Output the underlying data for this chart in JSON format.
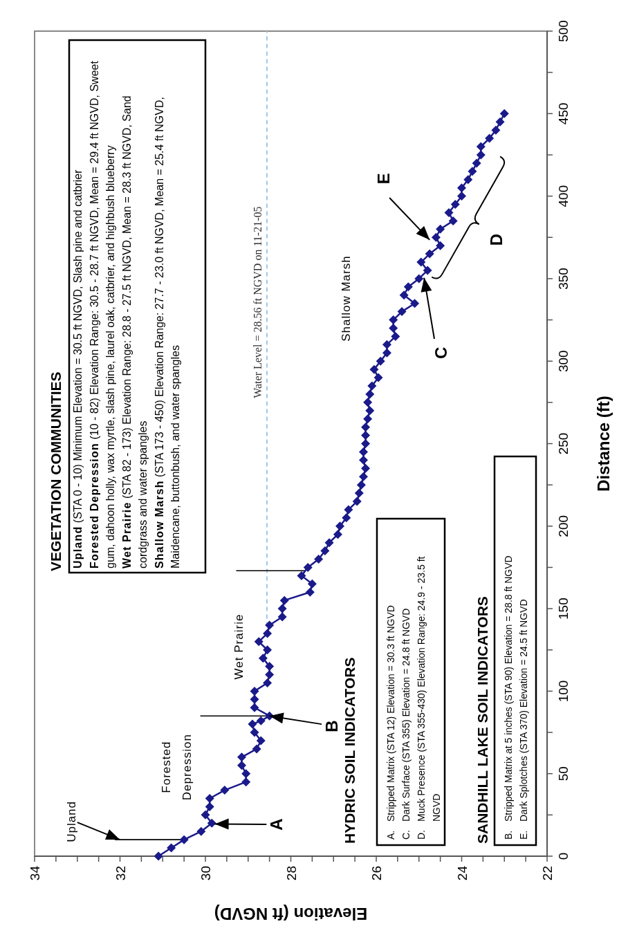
{
  "chart_data": {
    "type": "line",
    "xlabel": "Elevation (ft NGVD)",
    "ylabel": "Distance (ft)",
    "xlim": [
      34,
      22
    ],
    "ylim": [
      0,
      500
    ],
    "yticks": [
      0,
      {
        "value": 25,
        "label": null
      },
      50,
      {
        "value": 75,
        "label": null
      },
      100,
      {
        "value": 125,
        "label": null
      },
      150,
      {
        "value": 175,
        "label": null
      },
      200,
      {
        "value": 225,
        "label": null
      },
      250,
      {
        "value": 275,
        "label": null
      },
      300,
      {
        "value": 325,
        "label": null
      },
      350,
      {
        "value": 375,
        "label": null
      },
      400,
      {
        "value": 425,
        "label": null
      },
      450,
      {
        "value": 475,
        "label": null
      },
      500
    ],
    "xticks": [
      22,
      {
        "value": 22.5,
        "label": null
      },
      {
        "value": 23,
        "label": null
      },
      {
        "value": 23.5,
        "label": null
      },
      24,
      {
        "value": 24.5,
        "label": null
      },
      {
        "value": 25,
        "label": null
      },
      {
        "value": 25.5,
        "label": null
      },
      26,
      {
        "value": 26.5,
        "label": null
      },
      {
        "value": 27,
        "label": null
      },
      {
        "value": 27.5,
        "label": null
      },
      28,
      {
        "value": 28.5,
        "label": null
      },
      {
        "value": 29,
        "label": null
      },
      {
        "value": 29.5,
        "label": null
      },
      30,
      {
        "value": 30.5,
        "label": null
      },
      {
        "value": 31,
        "label": null
      },
      {
        "value": 31.5,
        "label": null
      },
      32,
      {
        "value": 32.5,
        "label": null
      },
      {
        "value": 33,
        "label": null
      },
      {
        "value": 33.5,
        "label": null
      },
      34
    ],
    "marker": "diamond",
    "line_style": "solid",
    "x": [
      31.1,
      30.8,
      30.5,
      30.1,
      29.85,
      30.0,
      29.9,
      29.9,
      29.55,
      29.05,
      29.05,
      29.15,
      29.15,
      28.8,
      28.7,
      28.85,
      28.9,
      28.7,
      28.5,
      28.85,
      28.85,
      28.85,
      28.55,
      28.5,
      28.5,
      28.65,
      28.55,
      28.75,
      28.55,
      28.5,
      28.2,
      28.2,
      28.15,
      27.55,
      27.5,
      27.75,
      27.6,
      27.35,
      27.2,
      27.1,
      26.9,
      26.85,
      26.7,
      26.65,
      26.45,
      26.4,
      26.35,
      26.3,
      26.25,
      26.3,
      26.3,
      26.25,
      26.25,
      26.25,
      26.2,
      26.15,
      26.2,
      26.15,
      26.1,
      25.95,
      26.05,
      25.9,
      25.75,
      25.75,
      25.55,
      25.6,
      25.6,
      25.4,
      25.1,
      25.35,
      25.25,
      25.0,
      24.8,
      24.95,
      24.75,
      24.5,
      24.6,
      24.5,
      24.2,
      24.3,
      24.15,
      24.0,
      24.0,
      23.85,
      23.75,
      23.65,
      23.55,
      23.55,
      23.35,
      23.2,
      23.1,
      23.0
    ],
    "series": [
      {
        "color": "#1a1a8a",
        "values": [
          0,
          5,
          10,
          15,
          20,
          25,
          30,
          35,
          40,
          45,
          50,
          55,
          60,
          65,
          70,
          75,
          80,
          82,
          85,
          90,
          95,
          100,
          105,
          110,
          115,
          120,
          125,
          130,
          135,
          140,
          145,
          150,
          155,
          160,
          165,
          170,
          175,
          180,
          185,
          190,
          195,
          200,
          205,
          210,
          215,
          220,
          225,
          230,
          235,
          240,
          245,
          250,
          255,
          260,
          265,
          270,
          275,
          280,
          285,
          290,
          295,
          300,
          305,
          310,
          315,
          320,
          325,
          330,
          335,
          340,
          345,
          350,
          355,
          360,
          365,
          370,
          375,
          380,
          385,
          390,
          395,
          400,
          405,
          410,
          415,
          420,
          425,
          430,
          435,
          440,
          445,
          450
        ]
      }
    ],
    "ref_lines": [
      {
        "axis": "x",
        "value": 28.56,
        "label": "Water Level = 28.56 ft NGVD on 11-21-05",
        "color": "#9ec5e8",
        "line_style": "dashed"
      },
      {
        "axis": "y",
        "value": 10,
        "color": "#000000"
      },
      {
        "axis": "y",
        "value": 85,
        "color": "#000000"
      },
      {
        "axis": "y",
        "value": 173,
        "color": "#000000"
      }
    ],
    "annotations": [
      "VEGETATION COMMUNITIES",
      "Upland (STA 0 - 10) Minimum Elevation = 30.5 ft NGVD, Slash pine and catbrier",
      "Forested Depression (10 - 82) Elevation Range: 30.5 - 28.7 ft NGVD, Mean = 29.4 ft NGVD, Sweet gum, dahoon holly, wax myrtle, slash pine, laurel oak, catbrier, and highbush blueberry",
      "Wet Prairie (STA 82 - 173) Elevation Range: 28.8 - 27.5 ft NGVD, Mean = 28.3 ft NGVD, Sand cordgrass and water spangles",
      "Shallow Marsh (STA 173 - 450) Elevation Range: 27.7 - 23.0 ft NGVD, Mean = 25.4 ft NGVD, Maidencane, buttonbush, and water spangles",
      "HYDRIC SOIL INDICATORS",
      "A. Stripped Matrix (STA 12) Elevation = 30.3 ft NGVD",
      "C. Dark Surface (STA 355) Elevation = 24.8 ft NGVD",
      "D. Muck Presence (STA 355-430) Elevation Range: 24.9 - 23.5 ft NGVD",
      "SANDHILL LAKE SOIL INDICATORS",
      "B. Stripped Matrix at 5 inches (STA 90) Elevation = 28.8 ft NGVD",
      "E. Dark Splotches (STA 370) Elevation = 24.5 ft NGVD",
      {
        "text": "Upland",
        "x": 32.0,
        "y": 10
      },
      "Forested Depression",
      "Wet Prairie",
      "Shallow Marsh",
      {
        "text": "A",
        "x": 29.78,
        "y": 19.5
      },
      {
        "text": "B",
        "x": 28.5,
        "y": 85
      },
      {
        "text": "C",
        "x": 24.88,
        "y": 350.5
      },
      "D",
      {
        "text": "E",
        "x": 24.75,
        "y": 373.5
      }
    ]
  }
}
